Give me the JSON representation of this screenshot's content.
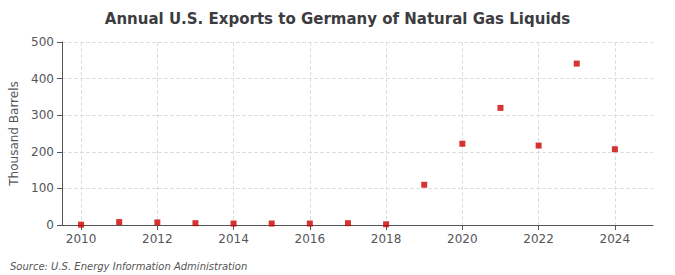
{
  "chart_data": {
    "type": "scatter",
    "title": "Annual U.S. Exports to Germany of Natural Gas Liquids",
    "ylabel": "Thousand Barrels",
    "source": "Source: U.S. Energy Information Administration",
    "x": [
      2010,
      2011,
      2012,
      2013,
      2014,
      2015,
      2016,
      2017,
      2018,
      2019,
      2020,
      2021,
      2022,
      2023,
      2024
    ],
    "values": [
      1,
      8,
      7,
      5,
      4,
      4,
      4,
      5,
      2,
      110,
      222,
      320,
      217,
      441,
      207
    ],
    "color": "#cc0000",
    "marker": "square",
    "xlim": [
      2009.5,
      2025.0
    ],
    "xticks": [
      2010,
      2012,
      2014,
      2016,
      2018,
      2020,
      2022,
      2024
    ],
    "ylim": [
      0,
      500
    ],
    "yticks": [
      0,
      100,
      200,
      300,
      400,
      500
    ],
    "grid": true
  }
}
